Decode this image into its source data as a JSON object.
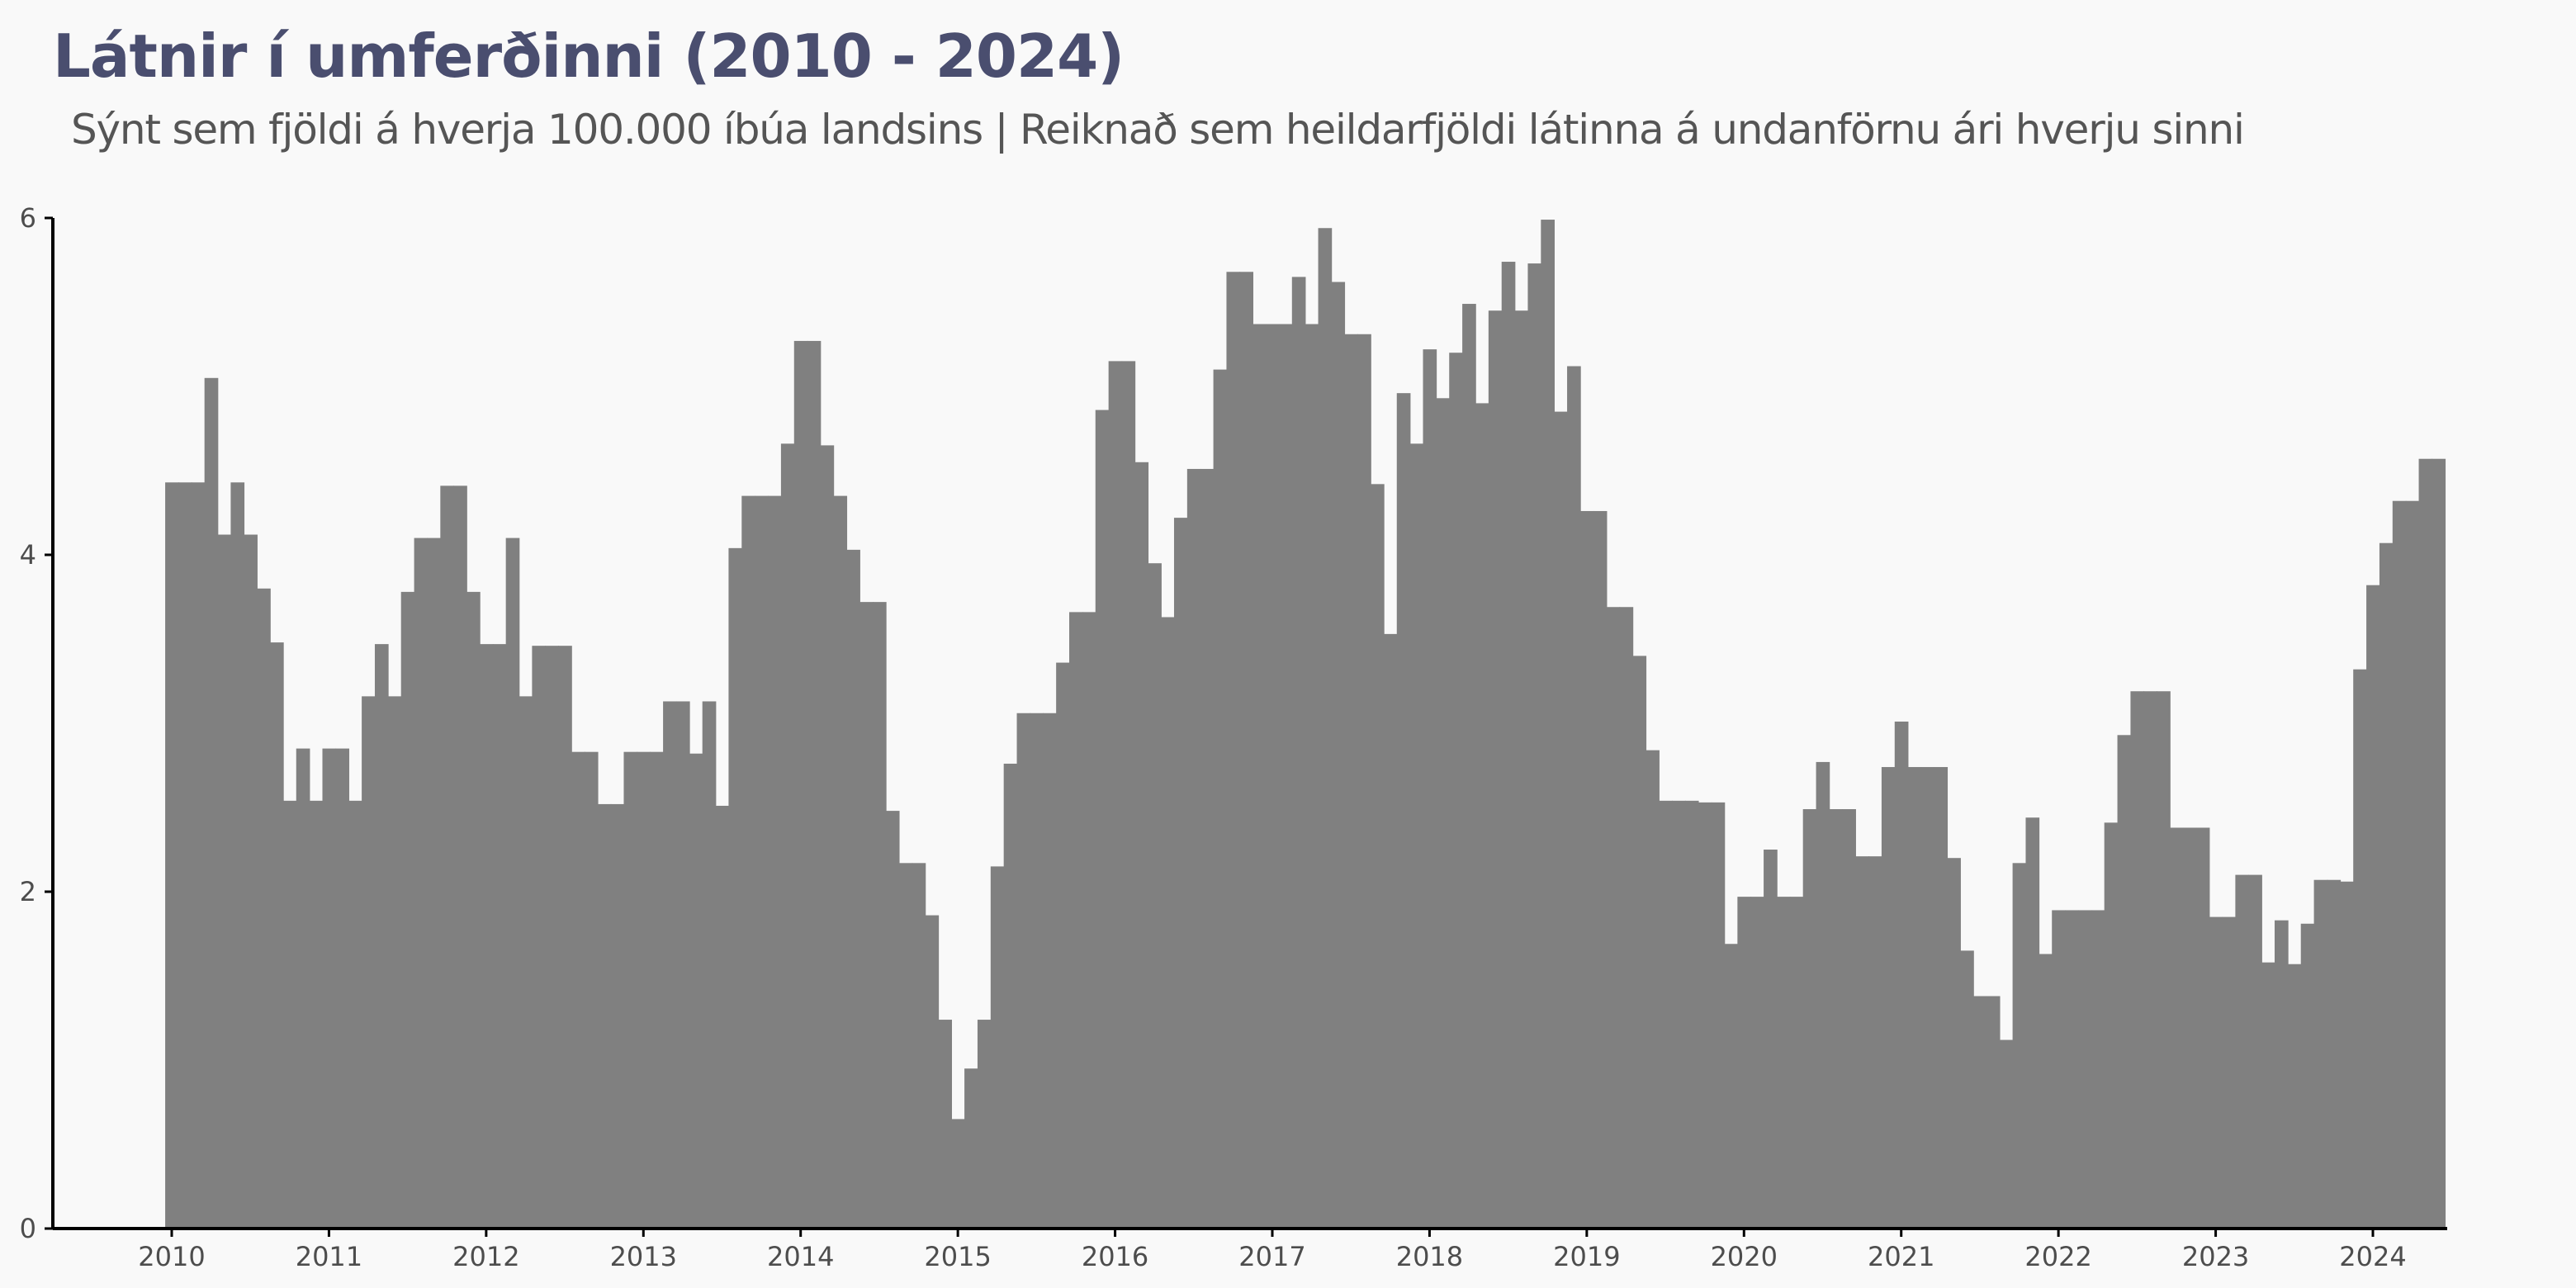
{
  "header": {
    "title": "Látnir í umferðinni (2010 - 2024)",
    "subtitle": "Sýnt sem fjöldi á hverja 100.000 íbúa landsins | Reiknað sem heildarfjöldi látinna á undanförnu ári hverju sinni"
  },
  "colors": {
    "background": "#f9f9f9",
    "bars": "#808080",
    "axis": "#000000",
    "title": "#4a4e6f",
    "subtitle": "#555555"
  },
  "chart_data": {
    "type": "bar",
    "title": "Látnir í umferðinni (2010 - 2024)",
    "subtitle": "Sýnt sem fjöldi á hverja 100.000 íbúa landsins | Reiknað sem heildarfjöldi látinna á undanförnu ári hverju sinni",
    "xlabel": "",
    "ylabel": "",
    "x_range": [
      "2010-01",
      "2024-06"
    ],
    "ylim": [
      0,
      6
    ],
    "x_ticks": [
      "2010",
      "2011",
      "2012",
      "2013",
      "2014",
      "2015",
      "2016",
      "2017",
      "2018",
      "2019",
      "2020",
      "2021",
      "2022",
      "2023",
      "2024"
    ],
    "y_ticks": [
      "0",
      "2",
      "4",
      "6"
    ],
    "grid": false,
    "legend": "none",
    "series": [
      {
        "values": [
          4.43,
          4.43,
          4.43,
          5.05,
          4.12,
          4.43,
          4.12,
          3.8,
          3.48,
          2.54,
          2.85,
          2.54,
          2.85,
          2.85,
          2.54,
          3.16,
          3.47,
          3.16,
          3.78,
          4.1,
          4.1,
          4.41,
          4.41,
          3.78,
          3.47,
          3.47,
          4.1,
          3.16,
          3.46,
          3.46,
          3.46,
          2.83,
          2.83,
          2.52,
          2.52,
          2.83,
          2.83,
          2.83,
          3.13,
          3.13,
          2.82,
          3.13,
          2.51,
          4.04,
          4.35,
          4.35,
          4.35,
          4.66,
          5.27,
          5.27,
          4.65,
          4.35,
          4.03,
          3.72,
          3.72,
          2.48,
          2.17,
          2.17,
          1.86,
          1.24,
          0.65,
          0.95,
          1.24,
          2.15,
          2.76,
          3.06,
          3.06,
          3.06,
          3.36,
          3.66,
          3.66,
          4.86,
          5.15,
          5.15,
          4.55,
          3.95,
          3.63,
          4.22,
          4.51,
          4.51,
          5.1,
          5.68,
          5.68,
          5.37,
          5.37,
          5.37,
          5.65,
          5.37,
          5.94,
          5.62,
          5.31,
          5.31,
          4.42,
          3.53,
          4.96,
          4.66,
          5.22,
          4.93,
          5.2,
          5.49,
          4.9,
          5.45,
          5.74,
          5.45,
          5.73,
          5.99,
          4.85,
          5.12,
          4.26,
          4.26,
          3.69,
          3.69,
          3.4,
          2.84,
          2.54,
          2.54,
          2.54,
          2.53,
          2.53,
          1.69,
          1.97,
          1.97,
          2.25,
          1.97,
          1.97,
          2.49,
          2.77,
          2.49,
          2.49,
          2.21,
          2.21,
          2.74,
          3.01,
          2.74,
          2.74,
          2.74,
          2.2,
          1.65,
          1.38,
          1.38,
          1.12,
          2.17,
          2.44,
          1.63,
          1.89,
          1.89,
          1.89,
          1.89,
          2.41,
          2.93,
          3.19,
          3.19,
          3.19,
          2.38,
          2.38,
          2.38,
          1.85,
          1.85,
          2.1,
          2.1,
          1.58,
          1.83,
          1.57,
          1.81,
          2.07,
          2.07,
          2.06,
          3.32,
          3.82,
          4.07,
          4.32,
          4.32,
          4.57,
          4.57
        ]
      }
    ]
  }
}
